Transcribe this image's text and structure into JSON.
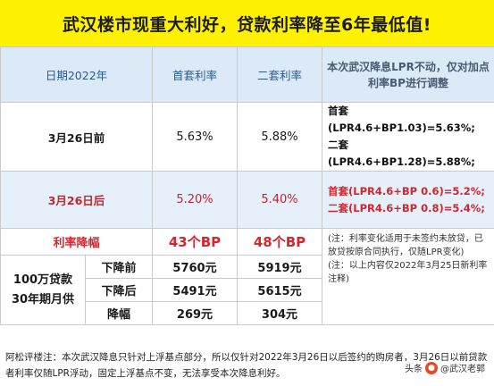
{
  "banner": {
    "title": "武汉楼市现重大利好，贷款利率降至6年最低值!"
  },
  "table": {
    "headers": {
      "date": "日期2022年",
      "first": "首套利率",
      "second": "二套利率",
      "note": "本次武汉降息LPR不动，仅对加点利率BP进行调整"
    },
    "before": {
      "label": "3月26日前",
      "first": "5.63%",
      "second": "5.88%",
      "note_first": "首套(LPR4.6+BP1.03)=5.63%;",
      "note_second": "二套(LPR4.6+BP1.28)=5.88%;"
    },
    "after": {
      "label": "3月26日后",
      "first": "5.20%",
      "second": "5.40%",
      "note_first_label": "首套",
      "note_first_rest": "(LPR4.6+BP 0.6)=5.2%;",
      "note_second_label": "二套",
      "note_second_rest": "(LPR4.6+BP 0.8)=5.4%;"
    },
    "drop": {
      "label": "利率降幅",
      "first": "43个BP",
      "second": "48个BP"
    },
    "loan": {
      "label_line1": "100万贷款",
      "label_line2": "30年期月供",
      "rows": [
        {
          "label": "下降前",
          "first": "5760元",
          "second": "5919元"
        },
        {
          "label": "下降后",
          "first": "5491元",
          "second": "5615元"
        },
        {
          "label": "降幅",
          "first": "269元",
          "second": "304元"
        }
      ],
      "footnote_1": "(注：利率变化适用于未签约未放贷，已放贷按原合同执行，仅随LPR变化)",
      "footnote_2": "(注：以上内容仅2022年3月25日新利率注释)"
    }
  },
  "footer": {
    "text": "阿松评楼注：本次武汉降息只针对上浮基点部分，所以仅针对2022年3月26日以后签约的购房者，3月26日以前贷款者利率仅随LPR浮动，固定上浮基点不变，无法享受本次降息利好。"
  },
  "watermark": {
    "prefix": "头条",
    "text": "@武汉老郭"
  }
}
